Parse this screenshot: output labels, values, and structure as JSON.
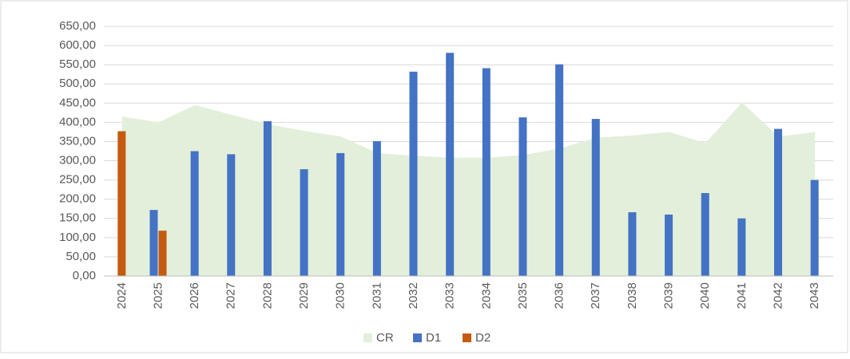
{
  "chart_data": {
    "type": "bar",
    "categories": [
      "2024",
      "2025",
      "2026",
      "2027",
      "2028",
      "2029",
      "2030",
      "2031",
      "2032",
      "2033",
      "2034",
      "2035",
      "2036",
      "2037",
      "2038",
      "2039",
      "2040",
      "2041",
      "2042",
      "2043"
    ],
    "series": [
      {
        "name": "CR",
        "type": "area",
        "color": "#e2efda",
        "values": [
          415,
          400,
          445,
          420,
          395,
          378,
          363,
          320,
          313,
          308,
          308,
          315,
          332,
          360,
          366,
          375,
          346,
          452,
          363,
          375
        ]
      },
      {
        "name": "D1",
        "type": "bar",
        "color": "#4472c4",
        "values": [
          null,
          172,
          325,
          317,
          403,
          278,
          320,
          351,
          532,
          581,
          541,
          413,
          551,
          409,
          166,
          160,
          216,
          150,
          383,
          250
        ]
      },
      {
        "name": "D2",
        "type": "bar",
        "color": "#c55a11",
        "values": [
          377,
          118,
          null,
          null,
          null,
          null,
          null,
          null,
          null,
          null,
          null,
          null,
          null,
          null,
          null,
          null,
          null,
          null,
          null,
          null
        ]
      }
    ],
    "ylim": [
      0,
      650
    ],
    "yticks": [
      {
        "value": 0,
        "label": "0,00"
      },
      {
        "value": 50,
        "label": "50,00"
      },
      {
        "value": 100,
        "label": "100,00"
      },
      {
        "value": 150,
        "label": "150,00"
      },
      {
        "value": 200,
        "label": "200,00"
      },
      {
        "value": 250,
        "label": "250,00"
      },
      {
        "value": 300,
        "label": "300,00"
      },
      {
        "value": 350,
        "label": "350,00"
      },
      {
        "value": 400,
        "label": "400,00"
      },
      {
        "value": 450,
        "label": "450,00"
      },
      {
        "value": 500,
        "label": "500,00"
      },
      {
        "value": 550,
        "label": "550,00"
      },
      {
        "value": 600,
        "label": "600,00"
      },
      {
        "value": 650,
        "label": "650,00"
      }
    ],
    "grid": true,
    "legend": "bottom"
  }
}
